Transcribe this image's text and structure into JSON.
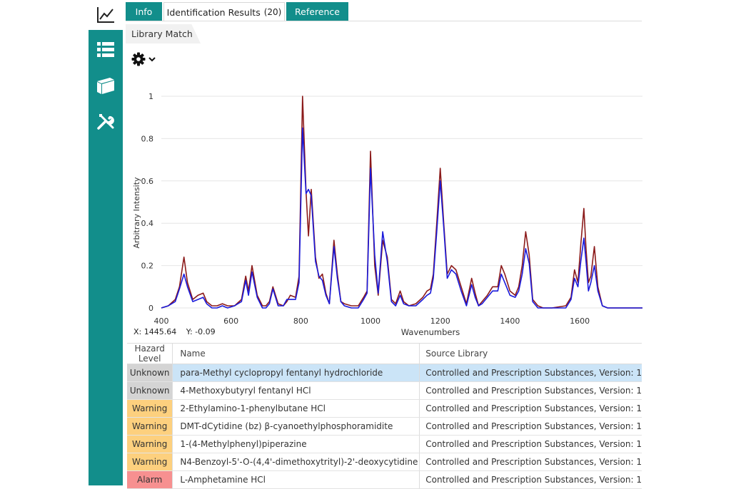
{
  "nav": {
    "items": [
      {
        "name": "chart-icon"
      },
      {
        "name": "list-icon"
      },
      {
        "name": "library-book-icon"
      },
      {
        "name": "tools-icon"
      }
    ],
    "colors": {
      "nav_bg": "#128e8b"
    }
  },
  "tabs": [
    {
      "label": "Info",
      "active": false
    },
    {
      "label": "Identification Results",
      "badge": "(20)",
      "active": true
    },
    {
      "label": "Reference",
      "active": false
    }
  ],
  "subtab": {
    "label": "Library Match"
  },
  "settings": {
    "icon": "gear-icon",
    "dropdown_icon": "chevron-down-icon"
  },
  "readout": {
    "x": "X: 1445.64",
    "y": "Y: -0.09"
  },
  "chart_data": {
    "type": "line",
    "xlabel": "Wavenumbers",
    "ylabel": "Arbitrary Intensity",
    "xlim": [
      400,
      1780
    ],
    "ylim": [
      0,
      1
    ],
    "xticks": [
      400,
      600,
      800,
      1000,
      1200,
      1400,
      1600
    ],
    "yticks": [
      0,
      0.2,
      0.4,
      0.6,
      0.8,
      1
    ],
    "grid": "horizontal",
    "series": [
      {
        "color": "#8b1a1a",
        "x": [
          400,
          420,
          440,
          452,
          465,
          475,
          490,
          505,
          520,
          530,
          545,
          560,
          575,
          590,
          610,
          630,
          642,
          650,
          660,
          675,
          690,
          700,
          710,
          720,
          735,
          750,
          760,
          770,
          785,
          795,
          805,
          815,
          822,
          830,
          842,
          852,
          862,
          872,
          882,
          895,
          905,
          915,
          925,
          945,
          965,
          980,
          990,
          1000,
          1012,
          1022,
          1035,
          1048,
          1060,
          1072,
          1085,
          1095,
          1110,
          1130,
          1150,
          1162,
          1172,
          1180,
          1190,
          1200,
          1210,
          1220,
          1232,
          1245,
          1260,
          1275,
          1290,
          1300,
          1310,
          1320,
          1335,
          1350,
          1365,
          1375,
          1385,
          1400,
          1415,
          1425,
          1435,
          1445,
          1455,
          1465,
          1480,
          1495,
          1520,
          1560,
          1575,
          1585,
          1595,
          1603,
          1612,
          1618,
          1625,
          1632,
          1642,
          1652,
          1665,
          1680,
          1780
        ],
        "y": [
          0,
          0.01,
          0.04,
          0.1,
          0.24,
          0.12,
          0.04,
          0.06,
          0.07,
          0.03,
          0.01,
          0.01,
          0.02,
          0.01,
          0.01,
          0.04,
          0.15,
          0.08,
          0.2,
          0.06,
          0.01,
          0.01,
          0.03,
          0.1,
          0.02,
          0.01,
          0.03,
          0.06,
          0.05,
          0.15,
          1.0,
          0.55,
          0.34,
          0.56,
          0.24,
          0.14,
          0.16,
          0.07,
          0.02,
          0.32,
          0.16,
          0.03,
          0.02,
          0.01,
          0.01,
          0.05,
          0.08,
          0.74,
          0.2,
          0.06,
          0.32,
          0.24,
          0.04,
          0.02,
          0.08,
          0.03,
          0.01,
          0.02,
          0.05,
          0.08,
          0.09,
          0.16,
          0.4,
          0.66,
          0.4,
          0.16,
          0.2,
          0.18,
          0.1,
          0.02,
          0.14,
          0.07,
          0.01,
          0.03,
          0.06,
          0.1,
          0.1,
          0.2,
          0.16,
          0.08,
          0.06,
          0.1,
          0.2,
          0.36,
          0.25,
          0.04,
          0.01,
          0.0,
          0.0,
          0.01,
          0.05,
          0.18,
          0.12,
          0.3,
          0.47,
          0.28,
          0.12,
          0.15,
          0.29,
          0.1,
          0.01,
          0.0,
          0.0
        ]
      },
      {
        "color": "#1a1adb",
        "x": [
          400,
          420,
          440,
          452,
          465,
          475,
          490,
          505,
          520,
          530,
          545,
          560,
          575,
          590,
          610,
          630,
          642,
          650,
          660,
          675,
          690,
          700,
          710,
          720,
          735,
          750,
          760,
          770,
          785,
          795,
          805,
          815,
          822,
          830,
          842,
          852,
          862,
          872,
          882,
          895,
          905,
          915,
          925,
          945,
          965,
          980,
          990,
          1000,
          1012,
          1022,
          1035,
          1048,
          1060,
          1072,
          1085,
          1095,
          1110,
          1130,
          1150,
          1162,
          1172,
          1180,
          1190,
          1200,
          1210,
          1220,
          1232,
          1245,
          1260,
          1275,
          1290,
          1300,
          1310,
          1320,
          1335,
          1350,
          1365,
          1375,
          1385,
          1400,
          1415,
          1425,
          1435,
          1445,
          1455,
          1465,
          1480,
          1495,
          1520,
          1560,
          1575,
          1585,
          1595,
          1603,
          1612,
          1618,
          1625,
          1632,
          1642,
          1652,
          1665,
          1680,
          1780
        ],
        "y": [
          0,
          0.01,
          0.03,
          0.09,
          0.16,
          0.1,
          0.03,
          0.04,
          0.05,
          0.02,
          0.0,
          0.0,
          0.01,
          0.0,
          0.01,
          0.03,
          0.13,
          0.06,
          0.17,
          0.05,
          0.0,
          0.0,
          0.02,
          0.09,
          0.01,
          0.01,
          0.04,
          0.04,
          0.04,
          0.12,
          0.85,
          0.54,
          0.56,
          0.53,
          0.22,
          0.15,
          0.13,
          0.06,
          0.02,
          0.29,
          0.14,
          0.03,
          0.01,
          0.0,
          0.0,
          0.04,
          0.07,
          0.66,
          0.25,
          0.07,
          0.36,
          0.22,
          0.03,
          0.01,
          0.06,
          0.02,
          0.01,
          0.01,
          0.04,
          0.06,
          0.07,
          0.14,
          0.36,
          0.6,
          0.38,
          0.14,
          0.18,
          0.16,
          0.08,
          0.01,
          0.11,
          0.05,
          0.01,
          0.02,
          0.05,
          0.08,
          0.08,
          0.16,
          0.12,
          0.06,
          0.05,
          0.08,
          0.16,
          0.28,
          0.21,
          0.03,
          0.0,
          0.0,
          0.0,
          0.0,
          0.04,
          0.14,
          0.1,
          0.22,
          0.33,
          0.22,
          0.08,
          0.12,
          0.2,
          0.08,
          0.01,
          0.0,
          0.0
        ]
      }
    ]
  },
  "table": {
    "columns": [
      "Hazard Level",
      "Name",
      "Source Library"
    ],
    "rows": [
      {
        "hazard": "Unknown",
        "name": "para-Methyl cyclopropyl fentanyl hydrochloride",
        "source": "Controlled and Prescription Substances, Version: 1",
        "color": "#d4d4d4",
        "selected": true
      },
      {
        "hazard": "Unknown",
        "name": "4-Methoxybutyryl fentanyl HCl",
        "source": "Controlled and Prescription Substances, Version: 1",
        "color": "#d4d4d4"
      },
      {
        "hazard": "Warning",
        "name": "2-Ethylamino-1-phenylbutane HCl",
        "source": "Controlled and Prescription Substances, Version: 1",
        "color": "#fdd07e"
      },
      {
        "hazard": "Warning",
        "name": "DMT-dCytidine (bz)  β-cyanoethylphosphoramidite",
        "source": "Controlled and Prescription Substances, Version: 1",
        "color": "#fdd07e"
      },
      {
        "hazard": "Warning",
        "name": "1-(4-Methylphenyl)piperazine",
        "source": "Controlled and Prescription Substances, Version: 1",
        "color": "#fdd07e"
      },
      {
        "hazard": "Warning",
        "name": "N4-Benzoyl-5'-O-(4,4'-dimethoxytrityl)-2'-deoxycytidine",
        "source": "Controlled and Prescription Substances, Version: 1",
        "color": "#fdd07e"
      },
      {
        "hazard": "Alarm",
        "name": "L-Amphetamine HCl",
        "source": "Controlled and Prescription Substances, Version: 1",
        "color": "#f79090"
      }
    ]
  }
}
